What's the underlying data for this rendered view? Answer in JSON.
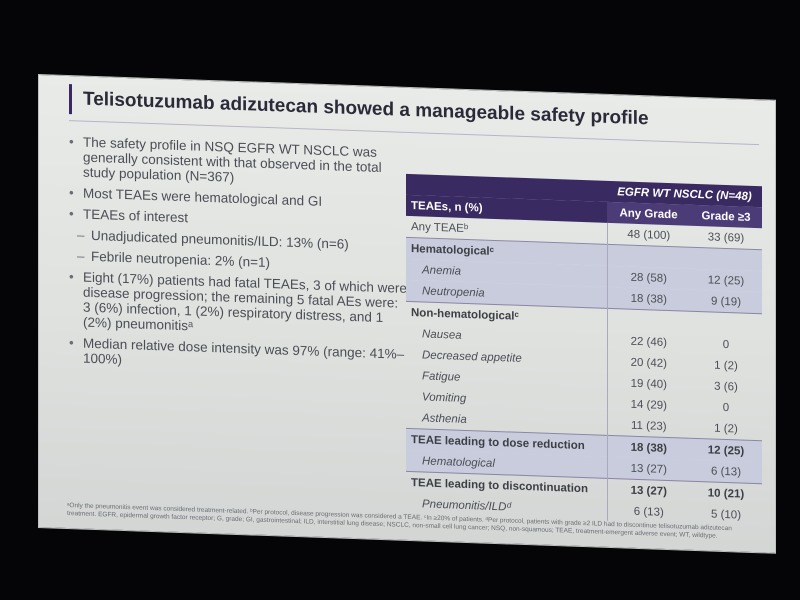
{
  "slide": {
    "title": "Telisotuzumab adizutecan showed a manageable safety profile",
    "bullets": [
      {
        "text": "The safety profile in NSQ EGFR WT NSCLC was generally consistent with that observed in the total study population (N=367)"
      },
      {
        "text": "Most TEAEs were hematological and GI"
      },
      {
        "text": "TEAEs of interest"
      }
    ],
    "subbullets": [
      "Unadjudicated pneumonitis/ILD: 13% (n=6)",
      "Febrile neutropenia: 2% (n=1)"
    ],
    "bullets2": [
      "Eight (17%) patients had fatal TEAEs, 3 of which were disease progression; the remaining 5 fatal AEs were: 3 (6%) infection, 1 (2%) respiratory distress, and 1 (2%) pneumonitisᵃ",
      "Median relative dose intensity was 97% (range: 41%–100%)"
    ],
    "table": {
      "group_header": "EGFR WT NSCLC (N=48)",
      "col_label": "TEAEs, n (%)",
      "col_any": "Any Grade",
      "col_g3": "Grade ≥3",
      "rows": [
        {
          "label": "Any TEAEᵇ",
          "any": "48 (100)",
          "g3": "33 (69)"
        },
        {
          "label": "Hematologicalᶜ",
          "any": "",
          "g3": ""
        },
        {
          "label": "Anemia",
          "any": "28 (58)",
          "g3": "12 (25)"
        },
        {
          "label": "Neutropenia",
          "any": "18 (38)",
          "g3": "9 (19)"
        },
        {
          "label": "Non-hematologicalᶜ",
          "any": "",
          "g3": ""
        },
        {
          "label": "Nausea",
          "any": "22 (46)",
          "g3": "0"
        },
        {
          "label": "Decreased appetite",
          "any": "20 (42)",
          "g3": "1 (2)"
        },
        {
          "label": "Fatigue",
          "any": "19 (40)",
          "g3": "3 (6)"
        },
        {
          "label": "Vomiting",
          "any": "14 (29)",
          "g3": "0"
        },
        {
          "label": "Asthenia",
          "any": "11 (23)",
          "g3": "1 (2)"
        },
        {
          "label": "TEAE leading to dose reduction",
          "any": "18 (38)",
          "g3": "12 (25)"
        },
        {
          "label": "Hematological",
          "any": "13 (27)",
          "g3": "6 (13)"
        },
        {
          "label": "TEAE leading to discontinuation",
          "any": "13 (27)",
          "g3": "10 (21)"
        },
        {
          "label": "Pneumonitis/ILDᵈ",
          "any": "6 (13)",
          "g3": "5 (10)"
        }
      ]
    },
    "footnote": "ᵃOnly the pneumonitis event was considered treatment-related. ᵇPer protocol, disease progression was considered a TEAE. ᶜIn ≥20% of patients. ᵈPer protocol, patients with grade ≥2 ILD had to discontinue telisotuzumab adizutecan treatment. EGFR, epidermal growth factor receptor; G, grade; GI, gastrointestinal; ILD, interstitial lung disease; NSCLC, non-small cell lung cancer; NSQ, non-squamous; TEAE, treatment-emergent adverse event; WT, wildtype."
  }
}
